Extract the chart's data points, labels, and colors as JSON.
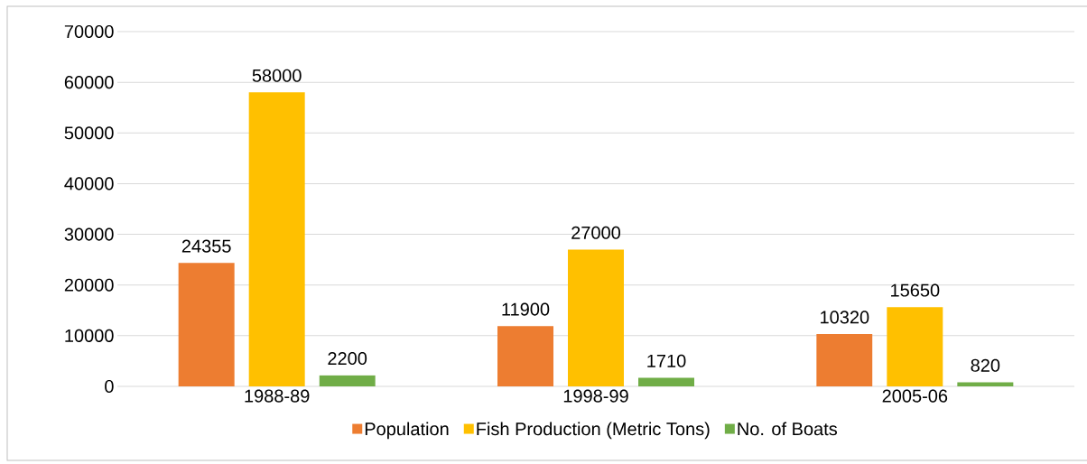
{
  "chart_data": {
    "type": "bar",
    "categories": [
      "1988-89",
      "1998-99",
      "2005-06"
    ],
    "series": [
      {
        "name": "Population",
        "color": "#ed7d31",
        "values": [
          24355,
          11900,
          10320
        ]
      },
      {
        "name": "Fish Production (Metric Tons)",
        "color": "#ffc000",
        "values": [
          58000,
          27000,
          15650
        ]
      },
      {
        "name": "No. of Boats",
        "color": "#70ad47",
        "values": [
          2200,
          1710,
          820
        ]
      }
    ],
    "ylim": [
      0,
      70000
    ],
    "yticks": [
      0,
      10000,
      20000,
      30000,
      40000,
      50000,
      60000,
      70000
    ],
    "grid": "y",
    "legend": "bottom",
    "data_labels": true
  }
}
